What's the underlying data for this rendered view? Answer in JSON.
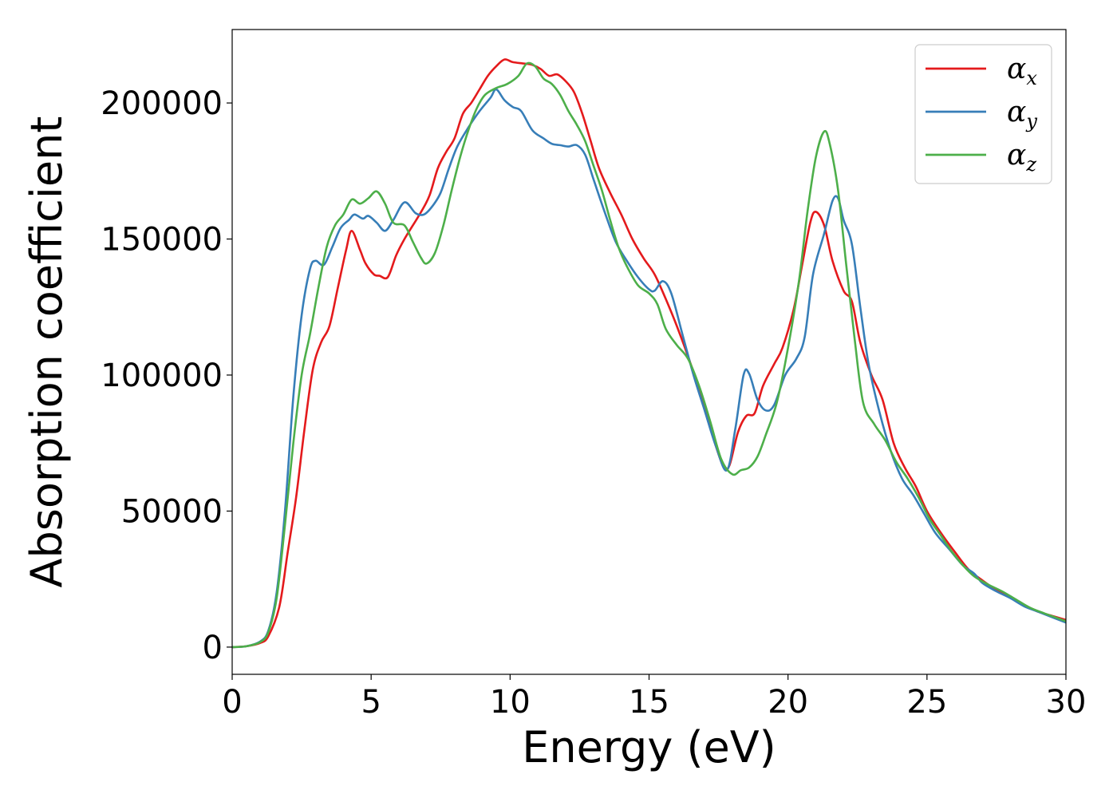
{
  "chart_data": {
    "type": "line",
    "title": "",
    "xlabel": "Energy (eV)",
    "ylabel": "Absorption coefficient",
    "xlim": [
      0,
      30
    ],
    "ylim": [
      -10000,
      227000
    ],
    "xticks": [
      "0",
      "5",
      "10",
      "15",
      "20",
      "25",
      "30"
    ],
    "yticks": [
      "0",
      "50000",
      "100000",
      "150000",
      "200000"
    ],
    "grid": false,
    "legend_position": "top-right",
    "series": [
      {
        "name": "αx",
        "name_base": "α",
        "name_sub": "x",
        "color": "#e41a1c",
        "points": [
          [
            0,
            0
          ],
          [
            0.5,
            300
          ],
          [
            1,
            1500
          ],
          [
            1.3,
            4000
          ],
          [
            1.7,
            15000
          ],
          [
            2.0,
            35000
          ],
          [
            2.3,
            55000
          ],
          [
            2.6,
            80000
          ],
          [
            2.9,
            102000
          ],
          [
            3.2,
            112000
          ],
          [
            3.5,
            118000
          ],
          [
            3.8,
            132000
          ],
          [
            4.1,
            146000
          ],
          [
            4.3,
            153000
          ],
          [
            4.6,
            146000
          ],
          [
            4.8,
            141000
          ],
          [
            5.1,
            137000
          ],
          [
            5.3,
            136500
          ],
          [
            5.6,
            136000
          ],
          [
            5.9,
            144000
          ],
          [
            6.2,
            150000
          ],
          [
            6.5,
            155000
          ],
          [
            6.8,
            160000
          ],
          [
            7.1,
            166000
          ],
          [
            7.4,
            176000
          ],
          [
            7.7,
            182000
          ],
          [
            8.0,
            187000
          ],
          [
            8.3,
            196000
          ],
          [
            8.6,
            200000
          ],
          [
            8.9,
            205000
          ],
          [
            9.2,
            210000
          ],
          [
            9.5,
            213500
          ],
          [
            9.8,
            216000
          ],
          [
            10.1,
            215000
          ],
          [
            10.5,
            214500
          ],
          [
            10.8,
            214000
          ],
          [
            11.1,
            212500
          ],
          [
            11.4,
            210000
          ],
          [
            11.7,
            210500
          ],
          [
            12.0,
            208000
          ],
          [
            12.3,
            204000
          ],
          [
            12.6,
            196000
          ],
          [
            12.9,
            186000
          ],
          [
            13.2,
            176000
          ],
          [
            13.6,
            167000
          ],
          [
            14.0,
            159000
          ],
          [
            14.4,
            150000
          ],
          [
            14.8,
            143000
          ],
          [
            15.2,
            137000
          ],
          [
            15.6,
            128000
          ],
          [
            16.0,
            118000
          ],
          [
            16.5,
            104000
          ],
          [
            17.0,
            88000
          ],
          [
            17.4,
            74000
          ],
          [
            17.7,
            66000
          ],
          [
            17.9,
            67000
          ],
          [
            18.2,
            79000
          ],
          [
            18.5,
            85000
          ],
          [
            18.8,
            86000
          ],
          [
            19.1,
            96000
          ],
          [
            19.5,
            104000
          ],
          [
            19.8,
            110000
          ],
          [
            20.2,
            124000
          ],
          [
            20.5,
            140000
          ],
          [
            20.8,
            156000
          ],
          [
            21.0,
            160000
          ],
          [
            21.3,
            155000
          ],
          [
            21.6,
            142000
          ],
          [
            22.0,
            131000
          ],
          [
            22.3,
            127000
          ],
          [
            22.6,
            112000
          ],
          [
            23.0,
            100000
          ],
          [
            23.4,
            91000
          ],
          [
            23.8,
            75000
          ],
          [
            24.2,
            66000
          ],
          [
            24.6,
            59000
          ],
          [
            25.0,
            50000
          ],
          [
            25.5,
            42000
          ],
          [
            26.0,
            35000
          ],
          [
            26.5,
            28500
          ],
          [
            27.0,
            24500
          ],
          [
            27.5,
            21000
          ],
          [
            28.0,
            18500
          ],
          [
            28.5,
            15500
          ],
          [
            29.0,
            13000
          ],
          [
            29.5,
            11500
          ],
          [
            30.0,
            10000
          ]
        ]
      },
      {
        "name": "αy",
        "name_base": "α",
        "name_sub": "y",
        "color": "#377eb8",
        "points": [
          [
            0,
            0
          ],
          [
            0.5,
            300
          ],
          [
            1,
            2000
          ],
          [
            1.3,
            6000
          ],
          [
            1.6,
            20000
          ],
          [
            1.9,
            50000
          ],
          [
            2.2,
            92000
          ],
          [
            2.5,
            122000
          ],
          [
            2.8,
            139000
          ],
          [
            3.0,
            142000
          ],
          [
            3.3,
            140500
          ],
          [
            3.6,
            147000
          ],
          [
            3.9,
            154000
          ],
          [
            4.2,
            157000
          ],
          [
            4.4,
            159000
          ],
          [
            4.7,
            157500
          ],
          [
            4.9,
            158500
          ],
          [
            5.2,
            156000
          ],
          [
            5.5,
            153000
          ],
          [
            5.8,
            157000
          ],
          [
            6.2,
            163500
          ],
          [
            6.6,
            159500
          ],
          [
            6.9,
            159000
          ],
          [
            7.2,
            162000
          ],
          [
            7.5,
            167000
          ],
          [
            7.8,
            176000
          ],
          [
            8.1,
            184000
          ],
          [
            8.5,
            191000
          ],
          [
            8.9,
            197000
          ],
          [
            9.3,
            202000
          ],
          [
            9.5,
            205000
          ],
          [
            9.8,
            201000
          ],
          [
            10.1,
            198500
          ],
          [
            10.4,
            197000
          ],
          [
            10.8,
            190000
          ],
          [
            11.2,
            187000
          ],
          [
            11.5,
            185000
          ],
          [
            11.8,
            184500
          ],
          [
            12.1,
            184000
          ],
          [
            12.4,
            184500
          ],
          [
            12.7,
            181000
          ],
          [
            13.0,
            172000
          ],
          [
            13.4,
            160000
          ],
          [
            13.8,
            149000
          ],
          [
            14.2,
            142000
          ],
          [
            14.6,
            136000
          ],
          [
            15.0,
            131500
          ],
          [
            15.2,
            131000
          ],
          [
            15.5,
            134500
          ],
          [
            15.8,
            130000
          ],
          [
            16.2,
            115000
          ],
          [
            16.6,
            100000
          ],
          [
            17.0,
            87000
          ],
          [
            17.4,
            74000
          ],
          [
            17.8,
            65000
          ],
          [
            18.1,
            80000
          ],
          [
            18.4,
            100000
          ],
          [
            18.6,
            100500
          ],
          [
            18.9,
            91000
          ],
          [
            19.2,
            87000
          ],
          [
            19.5,
            89000
          ],
          [
            19.9,
            100000
          ],
          [
            20.3,
            106000
          ],
          [
            20.6,
            114000
          ],
          [
            20.9,
            137000
          ],
          [
            21.3,
            152000
          ],
          [
            21.6,
            164000
          ],
          [
            21.8,
            165000
          ],
          [
            22.0,
            157000
          ],
          [
            22.3,
            148000
          ],
          [
            22.6,
            125000
          ],
          [
            22.9,
            104000
          ],
          [
            23.3,
            86000
          ],
          [
            23.7,
            72000
          ],
          [
            24.1,
            62000
          ],
          [
            24.5,
            56000
          ],
          [
            24.9,
            49000
          ],
          [
            25.3,
            42000
          ],
          [
            25.8,
            36000
          ],
          [
            26.3,
            30000
          ],
          [
            26.7,
            27000
          ],
          [
            27.0,
            23500
          ],
          [
            27.5,
            20500
          ],
          [
            28.0,
            18000
          ],
          [
            28.5,
            15000
          ],
          [
            29.0,
            13000
          ],
          [
            29.5,
            11000
          ],
          [
            30.0,
            9000
          ]
        ]
      },
      {
        "name": "αz",
        "name_base": "α",
        "name_sub": "z",
        "color": "#4daf4a",
        "points": [
          [
            0,
            0
          ],
          [
            0.5,
            300
          ],
          [
            1,
            1800
          ],
          [
            1.3,
            5500
          ],
          [
            1.6,
            18000
          ],
          [
            1.9,
            45000
          ],
          [
            2.2,
            75000
          ],
          [
            2.5,
            100000
          ],
          [
            2.8,
            115000
          ],
          [
            3.1,
            132000
          ],
          [
            3.4,
            147000
          ],
          [
            3.7,
            155000
          ],
          [
            4.0,
            159000
          ],
          [
            4.3,
            164500
          ],
          [
            4.6,
            163000
          ],
          [
            4.9,
            165000
          ],
          [
            5.2,
            167500
          ],
          [
            5.5,
            163000
          ],
          [
            5.8,
            156000
          ],
          [
            6.2,
            155000
          ],
          [
            6.5,
            149000
          ],
          [
            6.8,
            143000
          ],
          [
            7.0,
            141000
          ],
          [
            7.3,
            145000
          ],
          [
            7.6,
            155000
          ],
          [
            7.9,
            168000
          ],
          [
            8.2,
            180000
          ],
          [
            8.5,
            190000
          ],
          [
            8.8,
            198000
          ],
          [
            9.1,
            203000
          ],
          [
            9.5,
            205500
          ],
          [
            9.9,
            207000
          ],
          [
            10.3,
            210000
          ],
          [
            10.6,
            214500
          ],
          [
            10.9,
            213500
          ],
          [
            11.2,
            209000
          ],
          [
            11.5,
            207000
          ],
          [
            11.8,
            203000
          ],
          [
            12.1,
            197000
          ],
          [
            12.4,
            192000
          ],
          [
            12.7,
            186000
          ],
          [
            13.0,
            177000
          ],
          [
            13.3,
            168000
          ],
          [
            13.6,
            157000
          ],
          [
            13.9,
            147000
          ],
          [
            14.2,
            140000
          ],
          [
            14.6,
            133000
          ],
          [
            15.0,
            130000
          ],
          [
            15.3,
            126000
          ],
          [
            15.6,
            117000
          ],
          [
            16.0,
            111000
          ],
          [
            16.4,
            106000
          ],
          [
            16.8,
            96000
          ],
          [
            17.2,
            83000
          ],
          [
            17.6,
            69000
          ],
          [
            18.0,
            63500
          ],
          [
            18.3,
            65000
          ],
          [
            18.6,
            66000
          ],
          [
            18.9,
            70000
          ],
          [
            19.2,
            78000
          ],
          [
            19.6,
            90000
          ],
          [
            20.0,
            110000
          ],
          [
            20.4,
            135000
          ],
          [
            20.7,
            160000
          ],
          [
            21.0,
            180000
          ],
          [
            21.3,
            189500
          ],
          [
            21.5,
            185000
          ],
          [
            21.8,
            168000
          ],
          [
            22.1,
            140000
          ],
          [
            22.4,
            113000
          ],
          [
            22.7,
            90000
          ],
          [
            23.1,
            82000
          ],
          [
            23.5,
            76000
          ],
          [
            23.9,
            68000
          ],
          [
            24.3,
            62000
          ],
          [
            24.7,
            55000
          ],
          [
            25.1,
            47000
          ],
          [
            25.5,
            41000
          ],
          [
            25.9,
            35000
          ],
          [
            26.3,
            30000
          ],
          [
            26.7,
            26000
          ],
          [
            27.2,
            23000
          ],
          [
            27.7,
            20500
          ],
          [
            28.2,
            17500
          ],
          [
            28.7,
            14500
          ],
          [
            29.2,
            12500
          ],
          [
            29.6,
            11000
          ],
          [
            30.0,
            9500
          ]
        ]
      }
    ]
  }
}
